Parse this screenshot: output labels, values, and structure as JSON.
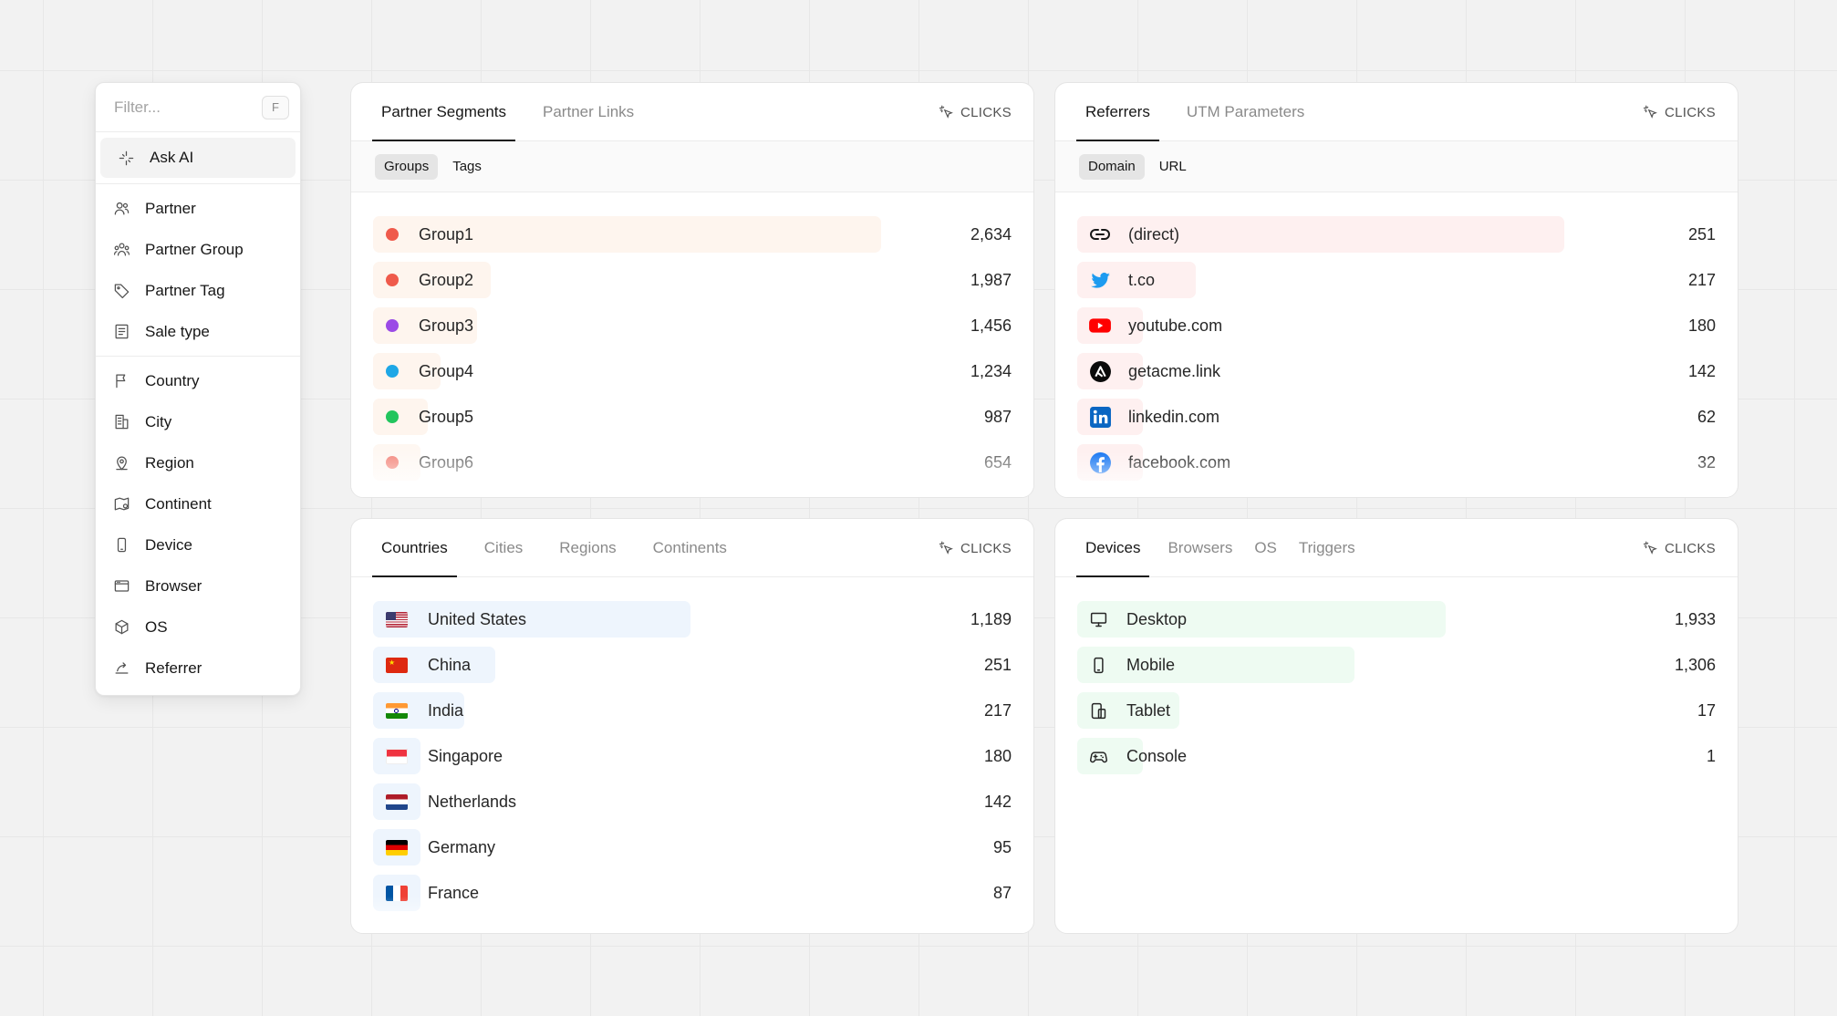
{
  "menu": {
    "filter_placeholder": "Filter...",
    "filter_shortcut": "F",
    "ask_ai": "Ask AI",
    "group1": [
      "Partner",
      "Partner Group",
      "Partner Tag",
      "Sale type"
    ],
    "group2": [
      "Country",
      "City",
      "Region",
      "Continent",
      "Device",
      "Browser",
      "OS",
      "Referrer"
    ]
  },
  "metric_label": "CLICKS",
  "segments": {
    "tabs": [
      "Partner Segments",
      "Partner Links"
    ],
    "subtabs": [
      "Groups",
      "Tags"
    ],
    "items": [
      {
        "label": "Group1",
        "value": "2,634",
        "color": "#ef5a4b"
      },
      {
        "label": "Group2",
        "value": "1,987",
        "color": "#ef5a4b"
      },
      {
        "label": "Group3",
        "value": "1,456",
        "color": "#9b4be6"
      },
      {
        "label": "Group4",
        "value": "1,234",
        "color": "#1ea7e6"
      },
      {
        "label": "Group5",
        "value": "987",
        "color": "#22c55e"
      },
      {
        "label": "Group6",
        "value": "654",
        "color": "#ef5a4b"
      }
    ]
  },
  "referrers": {
    "tabs": [
      "Referrers",
      "UTM Parameters"
    ],
    "subtabs": [
      "Domain",
      "URL"
    ],
    "items": [
      {
        "label": "(direct)",
        "value": "251",
        "icon": "link-icon"
      },
      {
        "label": "t.co",
        "value": "217",
        "icon": "twitter-icon"
      },
      {
        "label": "youtube.com",
        "value": "180",
        "icon": "youtube-icon"
      },
      {
        "label": "getacme.link",
        "value": "142",
        "icon": "acme-icon"
      },
      {
        "label": "linkedin.com",
        "value": "62",
        "icon": "linkedin-icon"
      },
      {
        "label": "facebook.com",
        "value": "32",
        "icon": "facebook-icon"
      }
    ]
  },
  "locations": {
    "tabs": [
      "Countries",
      "Cities",
      "Regions",
      "Continents"
    ],
    "items": [
      {
        "label": "United States",
        "value": "1,189",
        "flag": "us-flag"
      },
      {
        "label": "China",
        "value": "251",
        "flag": "cn-flag"
      },
      {
        "label": "India",
        "value": "217",
        "flag": "in-flag"
      },
      {
        "label": "Singapore",
        "value": "180",
        "flag": "sg-flag"
      },
      {
        "label": "Netherlands",
        "value": "142",
        "flag": "nl-flag"
      },
      {
        "label": "Germany",
        "value": "95",
        "flag": "de-flag"
      },
      {
        "label": "France",
        "value": "87",
        "flag": "fr-flag"
      }
    ]
  },
  "devices": {
    "tabs": [
      "Devices",
      "Browsers",
      "OS",
      "Triggers"
    ],
    "items": [
      {
        "label": "Desktop",
        "value": "1,933",
        "icon": "desktop-icon"
      },
      {
        "label": "Mobile",
        "value": "1,306",
        "icon": "mobile-icon"
      },
      {
        "label": "Tablet",
        "value": "17",
        "icon": "tablet-icon"
      },
      {
        "label": "Console",
        "value": "1",
        "icon": "gamepad-icon"
      }
    ]
  }
}
